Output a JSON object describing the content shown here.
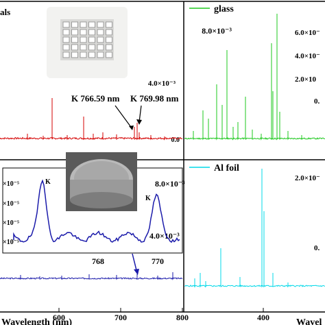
{
  "chart_data": [
    {
      "type": "line",
      "panel": "top-left",
      "legend_fragment": "als",
      "color": "#d40000",
      "ylabel_ticks": [
        "4.0×10⁻³",
        "0.0"
      ],
      "annotations": [
        "K 766.59 nm",
        "K 769.98 nm"
      ],
      "inset_photo": "sample-tray-photo",
      "peaks_x": [
        565,
        592,
        610,
        643,
        665,
        683,
        693,
        702,
        716,
        743
      ],
      "peaks_y_rel": [
        0.05,
        0.06,
        0.06,
        0.12,
        0.35,
        0.19,
        0.25,
        0.1,
        0.06,
        0.04
      ]
    },
    {
      "type": "line",
      "panel": "top-right",
      "legend": "glass",
      "color": "#1ec81e",
      "ylabel_ticks": [
        "8.0×10⁻³",
        "6.0×10⁻",
        "4.0×10⁻",
        "2.0×10",
        "0.0"
      ],
      "peaks_rel": [
        0.06,
        0.1,
        0.22,
        0.18,
        0.13,
        0.42,
        0.3,
        0.07,
        1.0,
        0.84,
        0.55,
        0.28,
        0.08
      ]
    },
    {
      "type": "line",
      "panel": "bottom-left",
      "color": "#1a1aaa",
      "xlabel": "Wavelength (nm)",
      "x_ticks": [
        "600",
        "700",
        "800"
      ],
      "inset_xlabel_ticks": [
        "768",
        "770"
      ],
      "inset_ylabel_ticks": [
        "×10⁻⁵",
        "×10⁻⁵",
        "×10⁻⁵",
        "×10⁻⁵"
      ],
      "inset_peak_labels": [
        "K",
        "K"
      ],
      "right_ticks": [
        "8.0×10⁻³",
        "4.0×10⁻³"
      ],
      "inset_photo": "al-disk-photo"
    },
    {
      "type": "line",
      "panel": "bottom-right",
      "legend": "Al foil",
      "color": "#00d8e8",
      "xlabel": "Wavel",
      "x_ticks": [
        "400"
      ],
      "ylabel_ticks": [
        "2.0×10⁻",
        "0."
      ]
    }
  ],
  "labels": {
    "tl_legend": "als",
    "tl_tick_4": "4.0×10⁻³",
    "tl_tick_0": "0.0",
    "tl_ann1": "K 766.59 nm",
    "tl_ann2": "K 769.98 nm",
    "tr_legend": "glass",
    "tr_tick_8": "8.0×10⁻³",
    "tr_tick_6": "6.0×10⁻",
    "tr_tick_4": "4.0×10⁻",
    "tr_tick_2": "2.0×10",
    "tr_tick_0": "0.",
    "bl_inset_y1": "×10⁻⁵",
    "bl_inset_y2": "×10⁻⁵",
    "bl_inset_y3": "×10⁻⁵",
    "bl_inset_y4": "×10⁻⁵",
    "bl_inset_k1": "K",
    "bl_inset_k2": "K",
    "bl_inset_x1": "768",
    "bl_inset_x2": "770",
    "bl_right_8": "8.0×10⁻³",
    "bl_right_4": "4.0×10⁻³",
    "bl_x_600": "600",
    "bl_x_700": "700",
    "bl_x_800": "800",
    "bl_xlabel": "Wavelength (nm)",
    "br_legend": "Al foil",
    "br_tick_2": "2.0×10⁻",
    "br_tick_0": "0.",
    "br_x_400": "400",
    "br_xlabel": "Wavel"
  }
}
